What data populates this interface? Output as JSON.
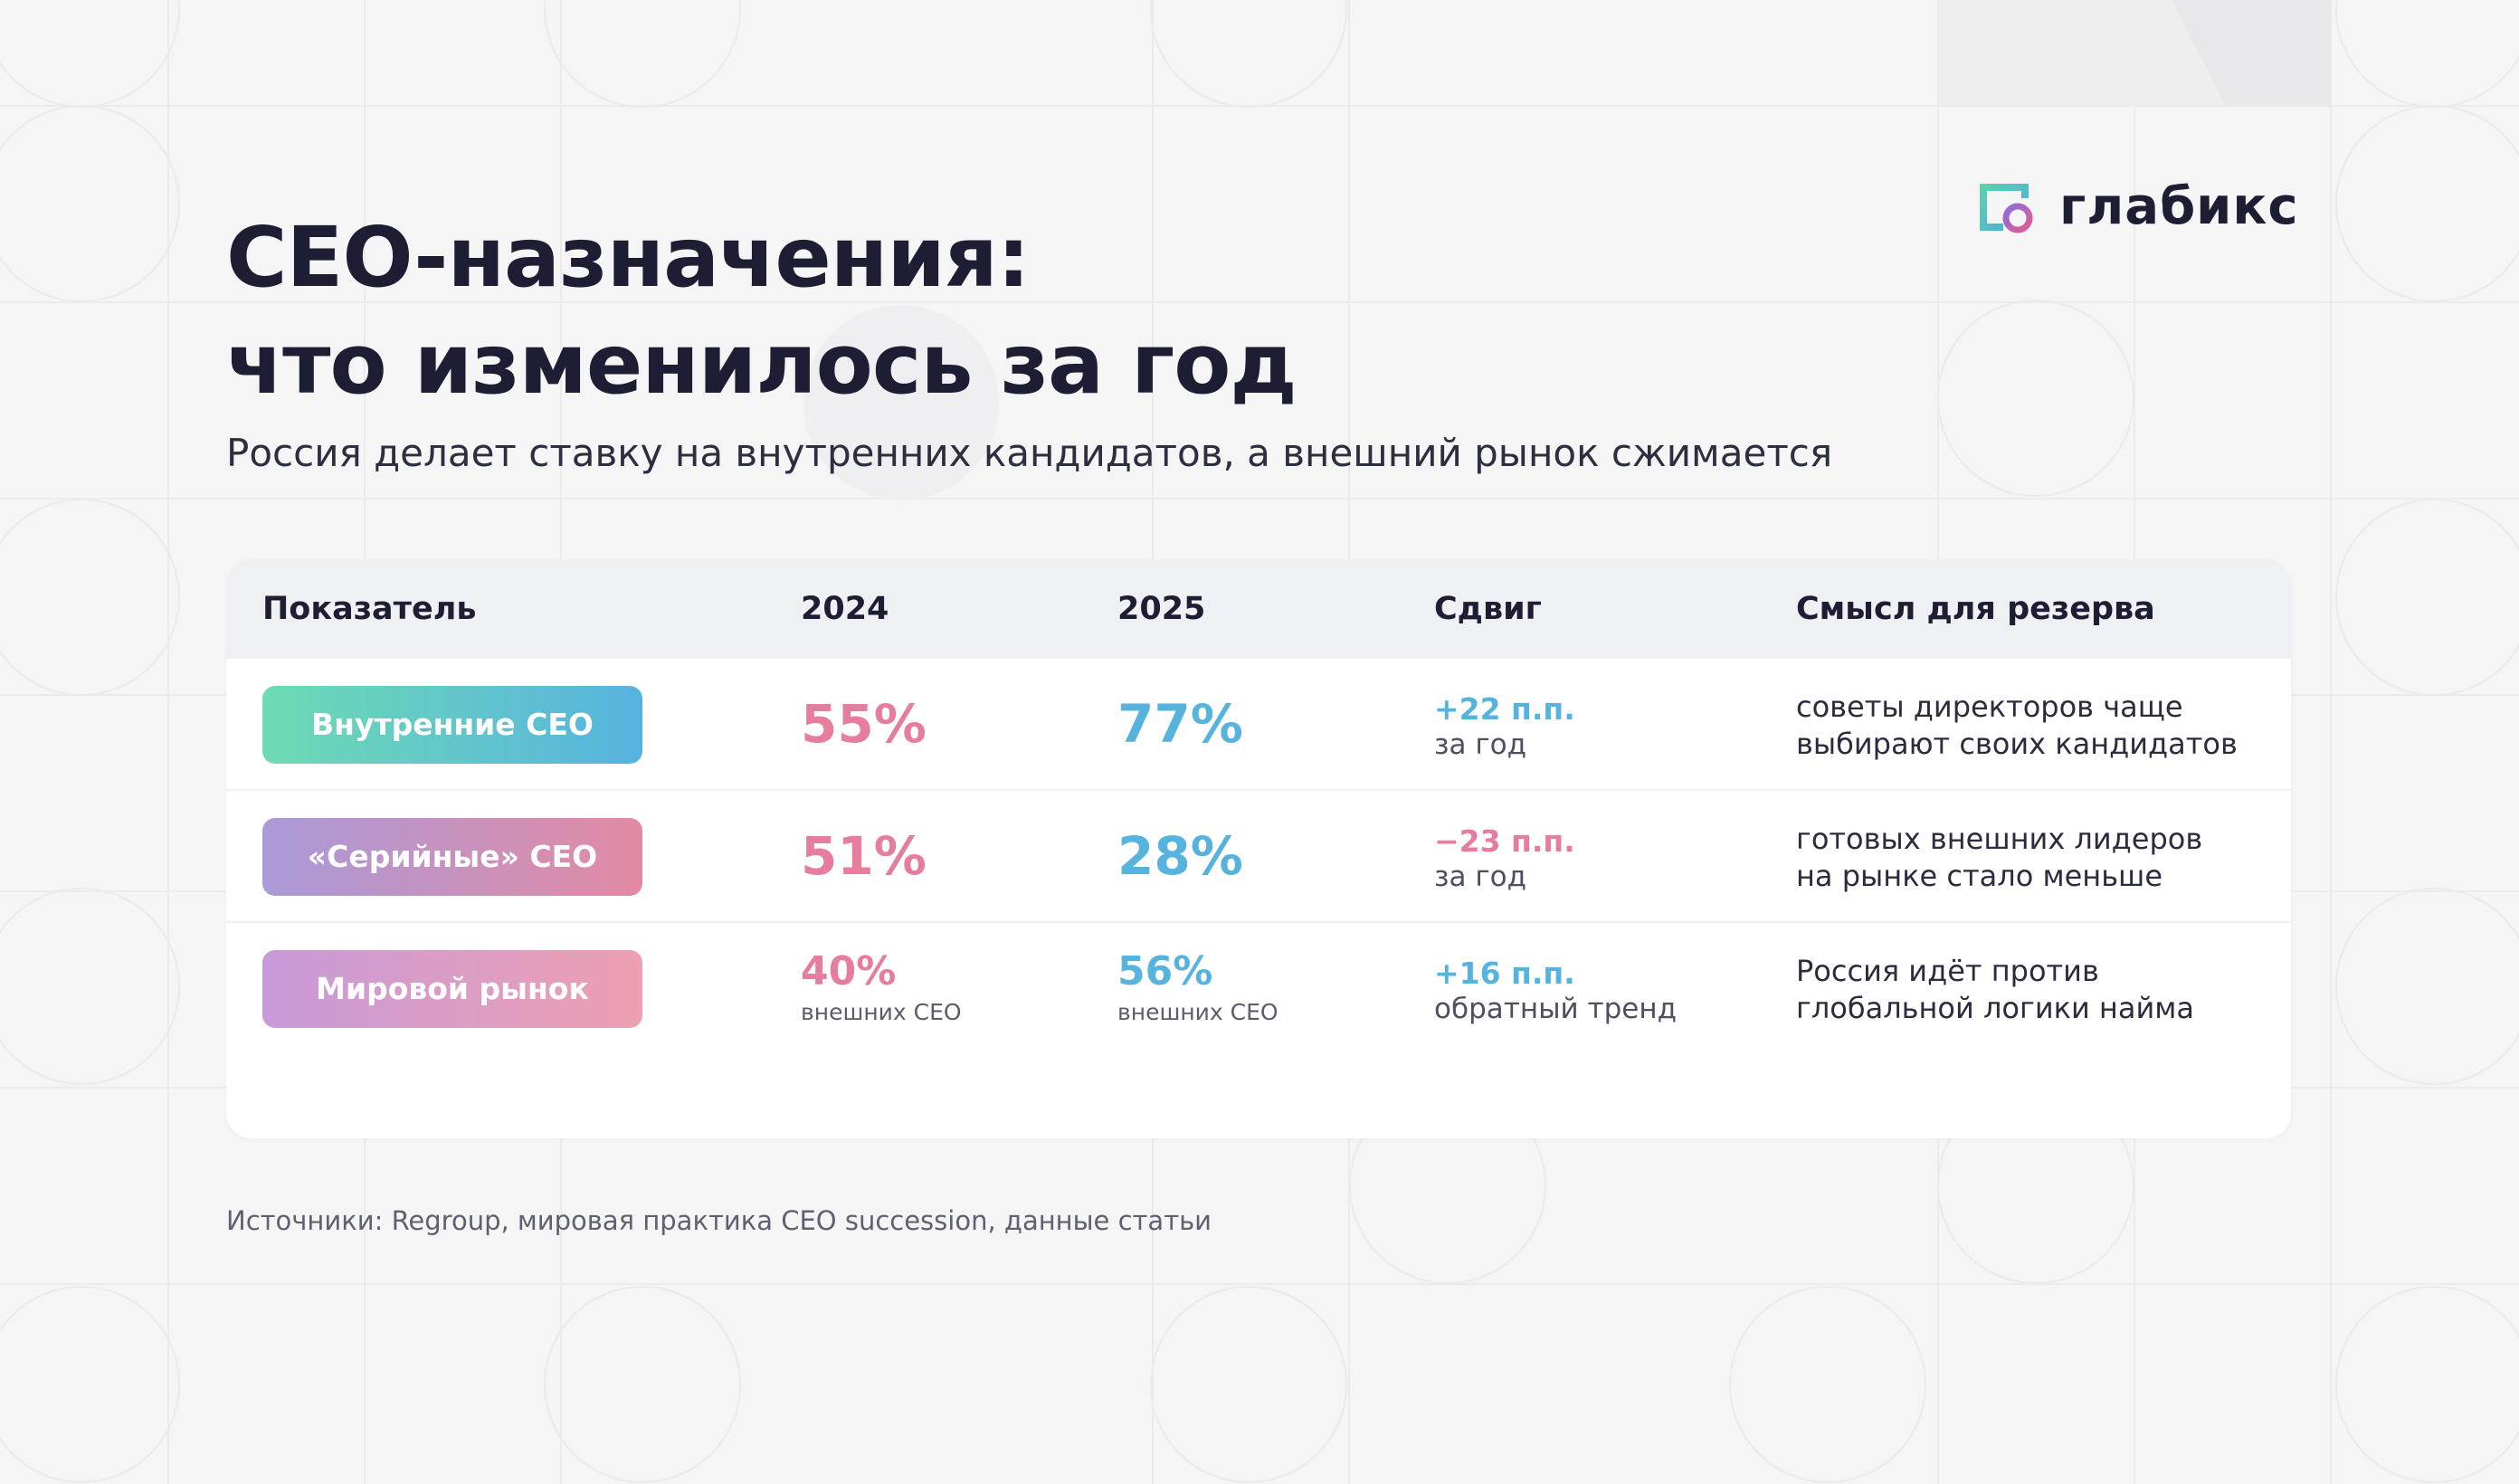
{
  "brand": {
    "name": "глабикс",
    "logo_icon": "glabix-logo-icon"
  },
  "title": {
    "line1": "CEO-назначения:",
    "line2": "что изменилось за год"
  },
  "subtitle": "Россия делает ставку на внутренних кандидатов, а внешний рынок сжимается",
  "table": {
    "headers": [
      "Показатель",
      "2024",
      "2025",
      "Сдвиг",
      "Смысл для резерва"
    ],
    "rows": [
      {
        "indicator": "Внутренние CEO",
        "v2024": "55%",
        "v2024_note": "",
        "v2025": "77%",
        "v2025_note": "",
        "shift": "+22 п.п.",
        "shift_note": "за год",
        "meaning_line1": "советы директоров чаще",
        "meaning_line2": "выбирают своих кандидатов"
      },
      {
        "indicator": "«Серийные» CEO",
        "v2024": "51%",
        "v2024_note": "",
        "v2025": "28%",
        "v2025_note": "",
        "shift": "−23 п.п.",
        "shift_note": "за год",
        "meaning_line1": "готовых внешних лидеров",
        "meaning_line2": "на рынке стало меньше"
      },
      {
        "indicator": "Мировой рынок",
        "v2024": "40%",
        "v2024_note": "внешних CEO",
        "v2025": "56%",
        "v2025_note": "внешних CEO",
        "shift": "+16 п.п.",
        "shift_note": "обратный тренд",
        "meaning_line1": "Россия идёт против",
        "meaning_line2": "глобальной логики найма"
      }
    ]
  },
  "source": "Источники: Regroup, мировая практика CEO succession, данные статьи",
  "colors": {
    "background": "#f5f5f6",
    "title": "#1d1e33",
    "value_2024": "#e67d9c",
    "value_2025": "#56b3de",
    "shift_positive": "#56b3de",
    "shift_negative": "#e67d9c",
    "pill_internal": [
      "#6fdab3",
      "#56b3e0"
    ],
    "pill_serial": [
      "#a99ad9",
      "#e38aa3"
    ],
    "pill_world": [
      "#c79ad8",
      "#ee9fb1"
    ]
  }
}
